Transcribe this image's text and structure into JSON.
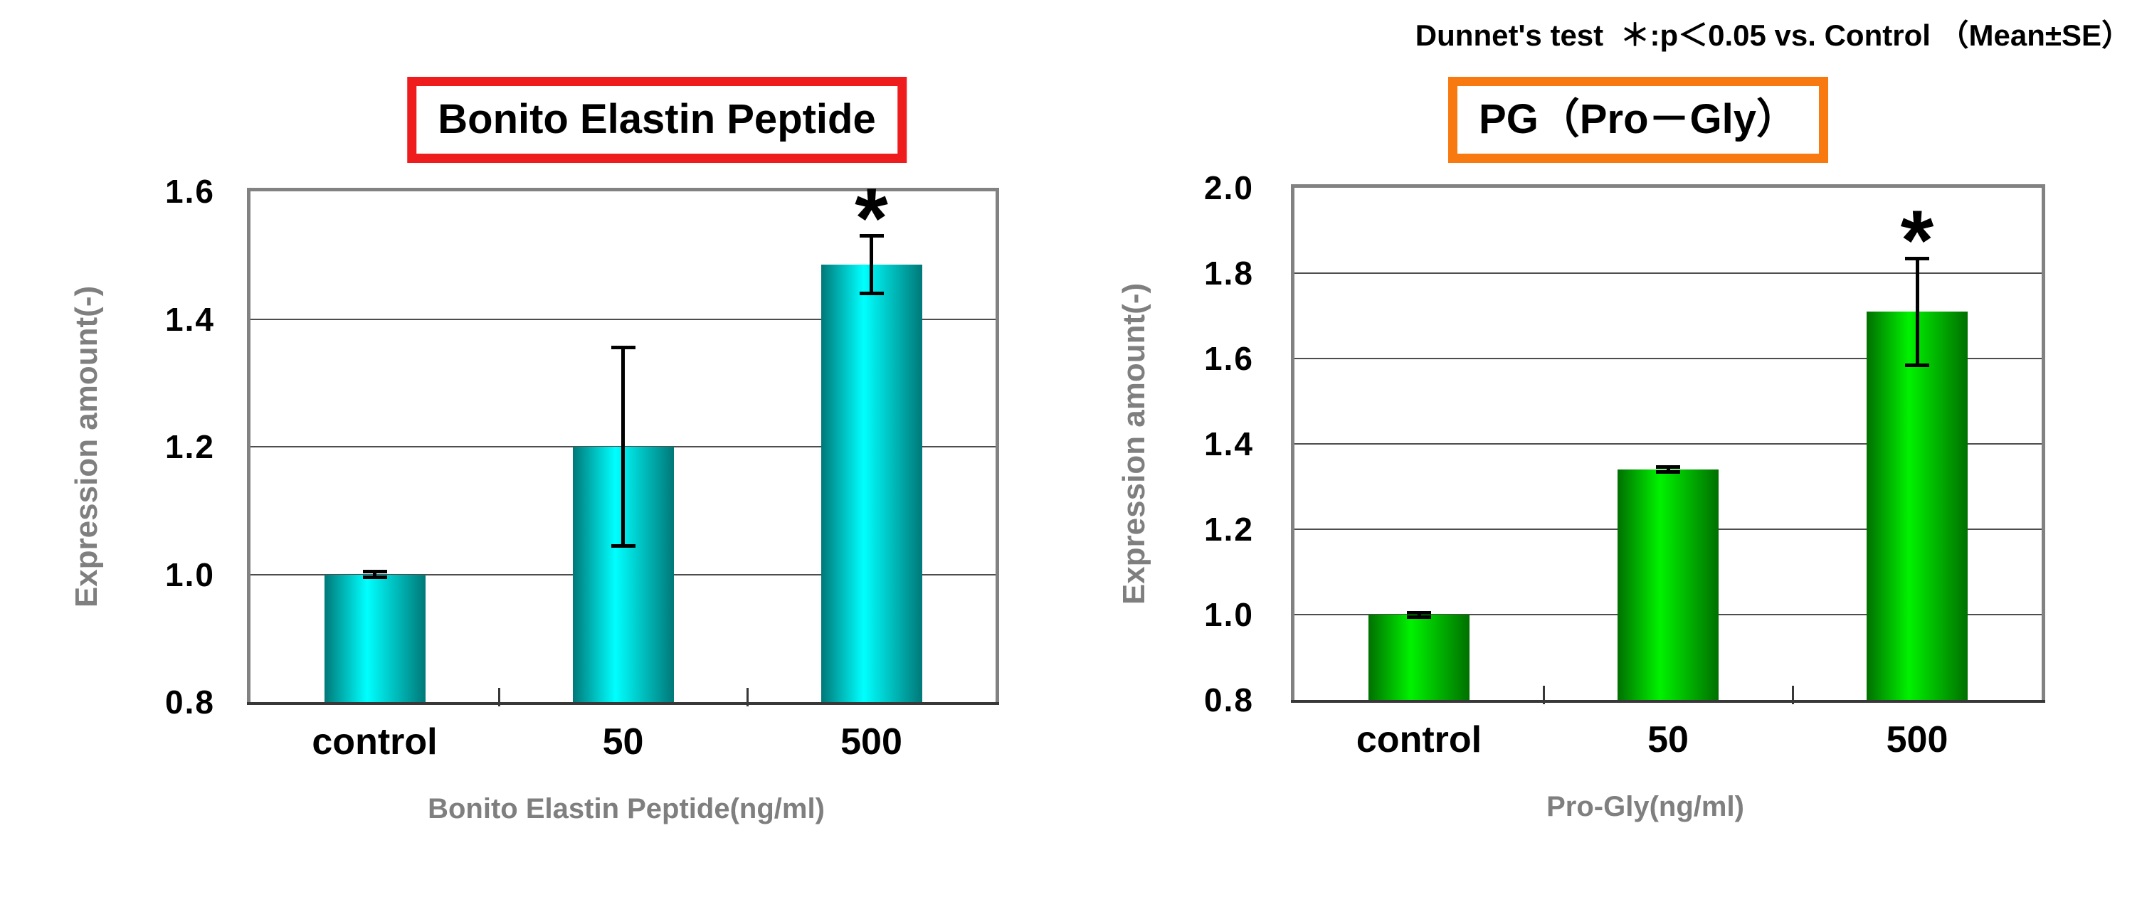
{
  "annotation": "Dunnet's test  ＊:p＜0.05 vs. Control （Mean±SE）",
  "chart_data": [
    {
      "type": "bar",
      "title": "Bonito Elastin Peptide",
      "title_box_color": "#ee1c1c",
      "ylabel": "Expression amount(-)",
      "xlabel": "Bonito Elastin Peptide(ng/ml)",
      "categories": [
        "control",
        "50",
        "500"
      ],
      "values": [
        1.0,
        1.2,
        1.485
      ],
      "errors": [
        0.005,
        0.155,
        0.045
      ],
      "significant": [
        false,
        false,
        true
      ],
      "sig_marker": "*",
      "ylim": [
        0.8,
        1.6
      ],
      "ytick_step": 0.2,
      "yticks": [
        "1.6",
        "1.4",
        "1.2",
        "1.0",
        "0.8"
      ],
      "bar_edge_color": "#007878",
      "bar_center_color": "#00ffff",
      "grid": true,
      "legend": null
    },
    {
      "type": "bar",
      "title": "PG（Pro－Gly）",
      "title_box_color": "#f8790f",
      "ylabel": "Expression amount(-)",
      "xlabel": "Pro-Gly(ng/ml)",
      "categories": [
        "control",
        "50",
        "500"
      ],
      "values": [
        1.0,
        1.34,
        1.71
      ],
      "errors": [
        0.005,
        0.006,
        0.125
      ],
      "significant": [
        false,
        false,
        true
      ],
      "sig_marker": "*",
      "ylim": [
        0.8,
        2.0
      ],
      "ytick_step": 0.2,
      "yticks": [
        "2.0",
        "1.8",
        "1.6",
        "1.4",
        "1.2",
        "1.0",
        "0.8"
      ],
      "bar_edge_color": "#007000",
      "bar_center_color": "#00f200",
      "grid": true,
      "legend": null
    }
  ],
  "style": {
    "grid_color": "#4d4d4d",
    "border_color": "#828282",
    "axis_color": "#383838",
    "label_gray": "#7f7f7f",
    "text_color": "#000000",
    "background": "#ffffff"
  }
}
